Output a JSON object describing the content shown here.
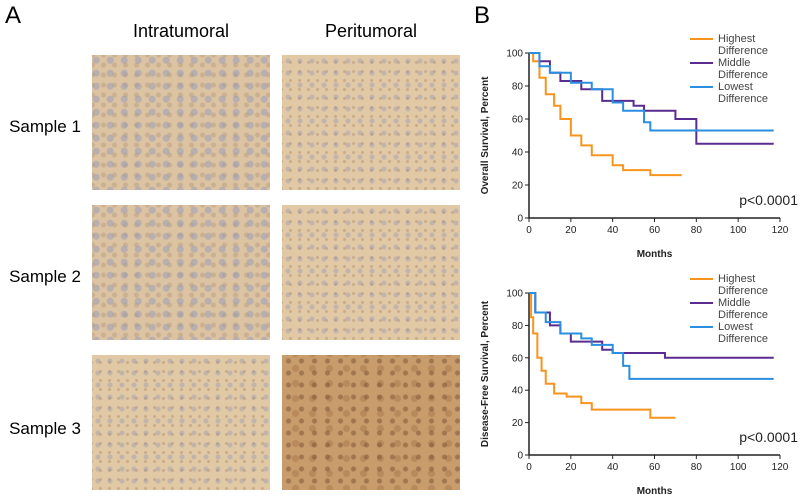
{
  "panel_a": {
    "label": "A",
    "columns": [
      "Intratumoral",
      "Peritumoral"
    ],
    "rows": [
      "Sample 1",
      "Sample 2",
      "Sample 3"
    ]
  },
  "panel_b": {
    "label": "B"
  },
  "chart_data": [
    {
      "type": "step",
      "ylabel": "Overall Survival, Percent",
      "xlabel": "Months",
      "annotation": "p<0.0001",
      "xlim": [
        0,
        120
      ],
      "ylim": [
        0,
        100
      ],
      "xticks": [
        0,
        20,
        40,
        60,
        80,
        100,
        120
      ],
      "yticks": [
        0,
        20,
        40,
        60,
        80,
        100
      ],
      "series": [
        {
          "name": "Highest Difference",
          "color": "#f7941d",
          "x": [
            0,
            2,
            5,
            8,
            12,
            15,
            20,
            25,
            30,
            40,
            45,
            58,
            73
          ],
          "values": [
            100,
            95,
            85,
            75,
            68,
            60,
            50,
            44,
            38,
            32,
            29,
            26,
            26
          ]
        },
        {
          "name": "Middle Difference",
          "color": "#5b2c8f",
          "x": [
            0,
            5,
            10,
            15,
            25,
            35,
            50,
            55,
            70,
            80,
            117
          ],
          "values": [
            100,
            95,
            88,
            83,
            78,
            71,
            68,
            65,
            60,
            45,
            45
          ]
        },
        {
          "name": "Lowest Difference",
          "color": "#2a8fe0",
          "x": [
            0,
            5,
            10,
            20,
            30,
            40,
            45,
            55,
            58,
            117
          ],
          "values": [
            100,
            92,
            88,
            82,
            78,
            70,
            65,
            58,
            53,
            53
          ]
        }
      ]
    },
    {
      "type": "step",
      "ylabel": "Disease-Free Survival, Percent",
      "xlabel": "Months",
      "annotation": "p<0.0001",
      "xlim": [
        0,
        120
      ],
      "ylim": [
        0,
        100
      ],
      "xticks": [
        0,
        20,
        40,
        60,
        80,
        100,
        120
      ],
      "yticks": [
        0,
        20,
        40,
        60,
        80,
        100
      ],
      "series": [
        {
          "name": "Highest Difference",
          "color": "#f7941d",
          "x": [
            0,
            1,
            2,
            4,
            6,
            8,
            12,
            18,
            25,
            30,
            55,
            58,
            70
          ],
          "values": [
            100,
            85,
            75,
            60,
            52,
            44,
            38,
            36,
            32,
            28,
            28,
            23,
            23
          ]
        },
        {
          "name": "Middle Difference",
          "color": "#5b2c8f",
          "x": [
            0,
            3,
            10,
            15,
            20,
            35,
            40,
            65,
            117
          ],
          "values": [
            100,
            88,
            80,
            75,
            70,
            65,
            63,
            60,
            60
          ]
        },
        {
          "name": "Lowest Difference",
          "color": "#2a8fe0",
          "x": [
            0,
            3,
            8,
            15,
            25,
            30,
            40,
            45,
            48,
            117
          ],
          "values": [
            100,
            88,
            82,
            75,
            72,
            68,
            63,
            55,
            47,
            47
          ]
        }
      ]
    }
  ]
}
